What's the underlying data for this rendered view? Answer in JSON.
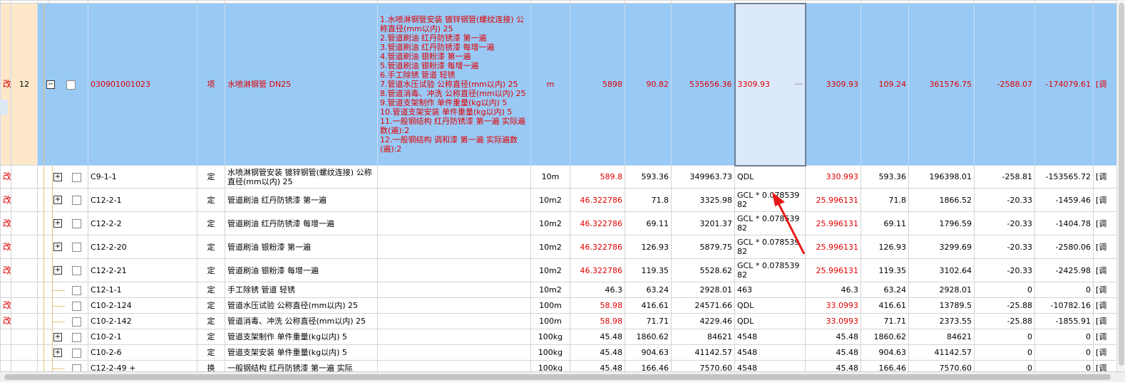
{
  "main_row": {
    "flag": "改",
    "seq": "12",
    "code": "030901001023",
    "type": "项",
    "name": "水喷淋钢管 DN25",
    "features": [
      "1.水喷淋钢管安装 镀锌钢管(螺纹连接) 公称直径(mm以内) 25",
      "2.管道刷油 红丹防锈漆 第一遍",
      "3.管道刷油 红丹防锈漆 每增一遍",
      "4.管道刷油 银粉漆 第一遍",
      "5.管道刷油 银粉漆 每增一遍",
      "6.手工除锈 管道 轻锈",
      "7.管道水压试验 公称直径(mm以内) 25",
      "8.管道消毒、冲洗 公称直径(mm以内) 25",
      "9.管道支架制作 单件重量(kg以内) 5",
      "10.管道支架安装 单件重量(kg以内) 5",
      "11.一般钢结构 红丹防锈漆 第一遍 实际遍数(遍):2",
      "12.一般钢结构 调和漆 第一遍 实际遍数(遍):2"
    ],
    "unit": "m",
    "qty": "5898",
    "price": "90.82",
    "total": "535656.36",
    "expr": "3309.93",
    "expr_more": "···",
    "qty2": "3309.93",
    "price2": "109.24",
    "total2": "361576.75",
    "diff_price": "-2588.07",
    "diff_total": "-174079.61",
    "extra": "[调"
  },
  "rows": [
    {
      "flag": "改",
      "expander": "+",
      "code": "C9-1-1",
      "type": "定",
      "name": "水喷淋钢管安装 镀锌钢管(螺纹连接) 公称直径(mm以内) 25",
      "unit": "10m",
      "qty": "589.8",
      "qty_red": true,
      "price": "593.36",
      "total": "349963.73",
      "expr": "QDL",
      "qty2": "330.993",
      "price2": "593.36",
      "total2": "196398.01",
      "dp": "-258.81",
      "dt": "-153565.72",
      "extra": "[调"
    },
    {
      "flag": "改",
      "expander": "+",
      "code": "C12-2-1",
      "type": "定",
      "name": "管道刷油 红丹防锈漆 第一遍",
      "unit": "10m2",
      "qty": "46.322786",
      "qty_red": true,
      "price": "71.8",
      "total": "3325.98",
      "expr": "GCL * 0.07853982",
      "qty2": "25.996131",
      "price2": "71.8",
      "total2": "1866.52",
      "dp": "-20.33",
      "dt": "-1459.46",
      "extra": "[调"
    },
    {
      "flag": "改",
      "expander": "+",
      "code": "C12-2-2",
      "type": "定",
      "name": "管道刷油 红丹防锈漆 每增一遍",
      "unit": "10m2",
      "qty": "46.322786",
      "qty_red": true,
      "price": "69.11",
      "total": "3201.37",
      "expr": "GCL * 0.07853982",
      "qty2": "25.996131",
      "price2": "69.11",
      "total2": "1796.59",
      "dp": "-20.33",
      "dt": "-1404.78",
      "extra": "[调"
    },
    {
      "flag": "改",
      "expander": "+",
      "code": "C12-2-20",
      "type": "定",
      "name": "管道刷油 银粉漆 第一遍",
      "unit": "10m2",
      "qty": "46.322786",
      "qty_red": true,
      "price": "126.93",
      "total": "5879.75",
      "expr": "GCL * 0.07853982",
      "qty2": "25.996131",
      "price2": "126.93",
      "total2": "3299.69",
      "dp": "-20.33",
      "dt": "-2580.06",
      "extra": "[调"
    },
    {
      "flag": "改",
      "expander": "+",
      "code": "C12-2-21",
      "type": "定",
      "name": "管道刷油 银粉漆 每增一遍",
      "unit": "10m2",
      "qty": "46.322786",
      "qty_red": true,
      "price": "119.35",
      "total": "5528.62",
      "expr": "GCL * 0.07853982",
      "qty2": "25.996131",
      "price2": "119.35",
      "total2": "3102.64",
      "dp": "-20.33",
      "dt": "-2425.98",
      "extra": "[调"
    },
    {
      "flag": "",
      "expander": "",
      "code": "C12-1-1",
      "type": "定",
      "name": "手工除锈 管道 轻锈",
      "unit": "10m2",
      "qty": "46.3",
      "qty_red": false,
      "price": "63.24",
      "total": "2928.01",
      "expr": "463",
      "qty2": "46.3",
      "price2": "63.24",
      "total2": "2928.01",
      "dp": "0",
      "dt": "0",
      "extra": "[调"
    },
    {
      "flag": "改",
      "expander": "",
      "code": "C10-2-124",
      "type": "定",
      "name": "管道水压试验 公称直径(mm以内) 25",
      "unit": "100m",
      "qty": "58.98",
      "qty_red": true,
      "price": "416.61",
      "total": "24571.66",
      "expr": "QDL",
      "qty2": "33.0993",
      "price2": "416.61",
      "total2": "13789.5",
      "dp": "-25.88",
      "dt": "-10782.16",
      "extra": "[调"
    },
    {
      "flag": "改",
      "expander": "",
      "code": "C10-2-142",
      "type": "定",
      "name": "管道消毒、冲洗 公称直径(mm以内) 25",
      "unit": "100m",
      "qty": "58.98",
      "qty_red": true,
      "price": "71.71",
      "total": "4229.46",
      "expr": "QDL",
      "qty2": "33.0993",
      "price2": "71.71",
      "total2": "2373.55",
      "dp": "-25.88",
      "dt": "-1855.91",
      "extra": "[调"
    },
    {
      "flag": "",
      "expander": "+",
      "code": "C10-2-1",
      "type": "定",
      "name": "管道支架制作 单件重量(kg以内) 5",
      "unit": "100kg",
      "qty": "45.48",
      "qty_red": false,
      "price": "1860.62",
      "total": "84621",
      "expr": "4548",
      "qty2": "45.48",
      "price2": "1860.62",
      "total2": "84621",
      "dp": "0",
      "dt": "0",
      "extra": "[调"
    },
    {
      "flag": "",
      "expander": "+",
      "code": "C10-2-6",
      "type": "定",
      "name": "管道支架安装 单件重量(kg以内) 5",
      "unit": "100kg",
      "qty": "45.48",
      "qty_red": false,
      "price": "904.63",
      "total": "41142.57",
      "expr": "4548",
      "qty2": "45.48",
      "price2": "904.63",
      "total2": "41142.57",
      "dp": "0",
      "dt": "0",
      "extra": "[调"
    },
    {
      "flag": "",
      "expander": "",
      "code": "C12-2-49 +",
      "type": "换",
      "name": "一般钢结构 红丹防锈漆 第一遍 实际",
      "unit": "100kg",
      "qty": "45.48",
      "qty_red": false,
      "price": "166.46",
      "total": "7570.60",
      "expr": "4548",
      "qty2": "45.48",
      "price2": "166.46",
      "total2": "7570.60",
      "dp": "0",
      "dt": "0",
      "extra": "[调"
    }
  ]
}
